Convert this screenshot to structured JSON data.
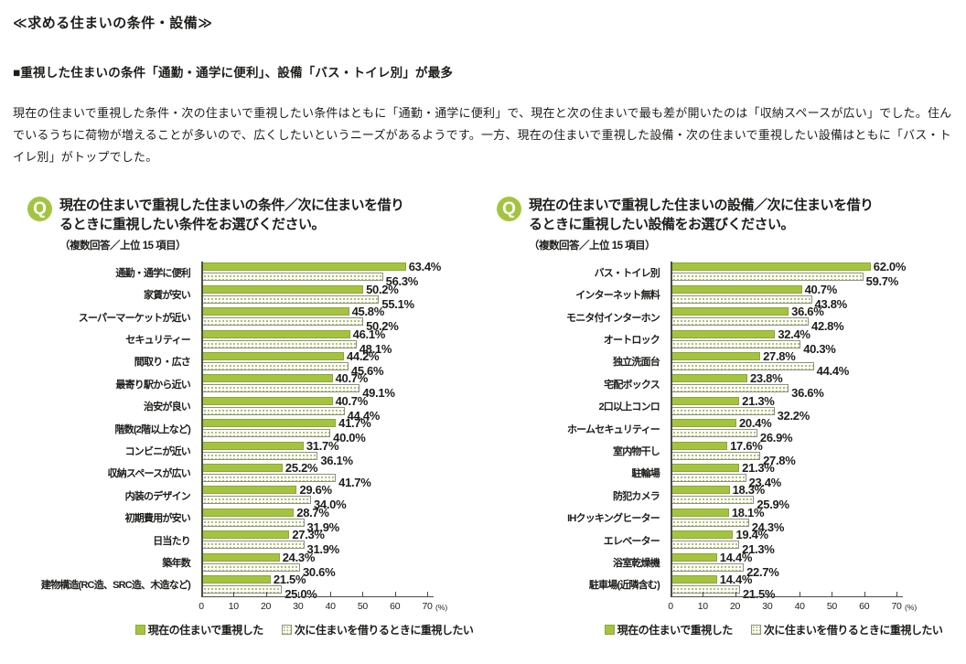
{
  "page": {
    "title": "≪求める住まいの条件・設備≫",
    "subtitle": "■重視した住まいの条件「通勤・通学に便利」、設備「バス・トイレ別」が最多",
    "body": "現在の住まいで重視した条件・次の住まいで重視したい条件はともに「通勤・通学に便利」で、現在と次の住まいで最も差が開いたのは「収納スペースが広い」でした。住んでいるうちに荷物が増えることが多いので、広くしたいというニーズがあるようです。一方、現在の住まいで重視した設備・次の住まいで重視したい設備はともに「バス・トイレ別」がトップでした。"
  },
  "q_label": "Q",
  "colors": {
    "bar_green": "#a4c440",
    "bar_green_border": "#8aa733",
    "dot_green": "#aabf66",
    "axis": "#4b4b47",
    "text": "#1d1d1b"
  },
  "legend": {
    "current_label": "現在の住まいで重視した",
    "next_label": "次に住まいを借りるときに重視したい"
  },
  "axis": {
    "ticks": [
      0,
      10,
      20,
      30,
      40,
      50,
      60,
      70
    ],
    "unit": "(%)",
    "max": 70
  },
  "chart_data": [
    {
      "type": "bar",
      "orientation": "horizontal",
      "title": "現在の住まいで重視した住まいの条件／次に住まいを借りるときに重視したい条件をお選びください。",
      "note": "（複数回答／上位 15 項目）",
      "categories": [
        "通勤・通学に便利",
        "家賃が安い",
        "スーパーマーケットが近い",
        "セキュリティー",
        "間取り・広さ",
        "最寄り駅から近い",
        "治安が良い",
        "階数(2階以上など)",
        "コンビニが近い",
        "収納スペースが広い",
        "内装のデザイン",
        "初期費用が安い",
        "日当たり",
        "築年数",
        "建物構造(RC造、SRC造、木造など)"
      ],
      "series": [
        {
          "name": "現在の住まいで重視した",
          "values": [
            63.4,
            50.2,
            45.8,
            46.1,
            44.2,
            40.7,
            40.7,
            41.7,
            31.7,
            25.2,
            29.6,
            28.7,
            27.3,
            24.3,
            21.5
          ]
        },
        {
          "name": "次に住まいを借りるときに重視したい",
          "values": [
            56.3,
            55.1,
            50.2,
            48.1,
            45.6,
            49.1,
            44.4,
            40.0,
            36.1,
            41.7,
            34.0,
            31.9,
            31.9,
            30.6,
            25.0
          ]
        }
      ],
      "xlim": [
        0,
        70
      ],
      "unit": "%",
      "legend_position": "bottom",
      "grid": false
    },
    {
      "type": "bar",
      "orientation": "horizontal",
      "title": "現在の住まいで重視した住まいの設備／次に住まいを借りるときに重視したい設備をお選びください。",
      "note": "（複数回答／上位 15 項目）",
      "categories": [
        "バス・トイレ別",
        "インターネット無料",
        "モニタ付インターホン",
        "オートロック",
        "独立洗面台",
        "宅配ボックス",
        "2口以上コンロ",
        "ホームセキュリティー",
        "室内物干し",
        "駐輪場",
        "防犯カメラ",
        "IHクッキングヒーター",
        "エレベーター",
        "浴室乾燥機",
        "駐車場(近隣含む)"
      ],
      "series": [
        {
          "name": "現在の住まいで重視した",
          "values": [
            62.0,
            40.7,
            36.6,
            32.4,
            27.8,
            23.8,
            21.3,
            20.4,
            17.6,
            21.3,
            18.3,
            18.1,
            19.4,
            14.4,
            14.4
          ]
        },
        {
          "name": "次に住まいを借りるときに重視したい",
          "values": [
            59.7,
            43.8,
            42.8,
            40.3,
            44.4,
            36.6,
            32.2,
            26.9,
            27.8,
            23.4,
            25.9,
            24.3,
            21.3,
            22.7,
            21.5
          ]
        }
      ],
      "xlim": [
        0,
        70
      ],
      "unit": "%",
      "legend_position": "bottom",
      "grid": false
    }
  ]
}
